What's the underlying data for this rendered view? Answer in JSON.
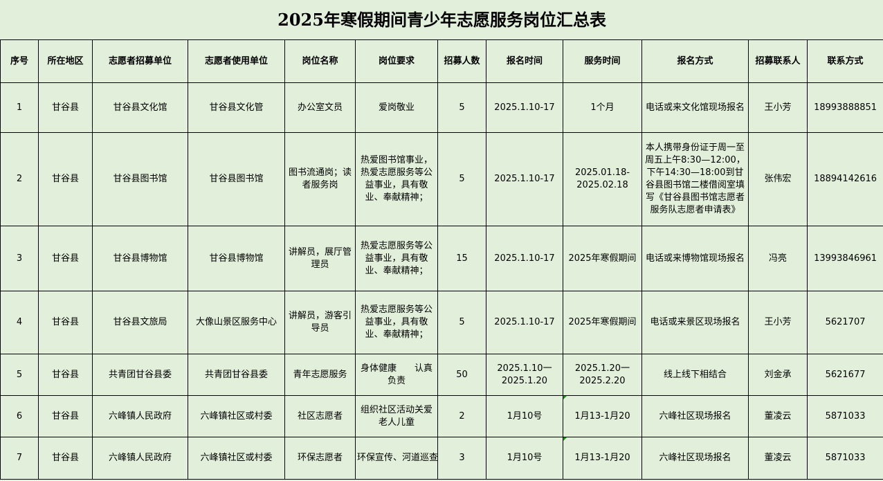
{
  "title": "2025年寒假期间青少年志愿服务岗位汇总表",
  "headers": [
    "序号",
    "所在地区",
    "志愿者招募单位",
    "志愿者使用单位",
    "岗位名称",
    "岗位要求",
    "招募人数",
    "报名时间",
    "服务时间",
    "报名方式",
    "招募联系人",
    "联系方式"
  ],
  "rows": [
    [
      "1",
      "甘谷县",
      "甘谷县文化馆",
      "甘谷县文化管",
      "办公室文员",
      "爱岗敬业",
      "5",
      "2025.1.10-17",
      "1个月",
      "电话或来文化馆现场报名",
      "王小芳",
      "18993888851"
    ],
    [
      "2",
      "甘谷县",
      "甘谷县图书馆",
      "甘谷县图书馆",
      "图书流通岗；读者服务岗",
      "热爱图书馆事业，热爱志愿服务等公益事业，具有敬业、奉献精神；",
      "5",
      "2025.1.10-17",
      "2025.01.18-2025.02.18",
      "本人携带身份证于周一至周五上午8:30—12:00，下午14:30—18:00到甘谷县图书馆二楼借阅室填写《甘谷县图书馆志愿者服务队志愿者申请表》",
      "张伟宏",
      "18894142616"
    ],
    [
      "3",
      "甘谷县",
      "甘谷县博物馆",
      "甘谷县博物馆",
      "讲解员，展厅管理员",
      "热爱志愿服务等公益事业，具有敬业、奉献精神；",
      "15",
      "2025.1.10-17",
      "2025年寒假期间",
      "电话或来博物馆现场报名",
      "冯亮",
      "13993846961"
    ],
    [
      "4",
      "甘谷县",
      "甘谷县文旅局",
      "大像山景区服务中心",
      "讲解员，游客引导员",
      "热爱志愿服务等公益事业，具有敬业、奉献精神；",
      "5",
      "2025.1.10-17",
      "2025年寒假期间",
      "电话或来景区现场报名",
      "王小芳",
      "5621707"
    ],
    [
      "5",
      "甘谷县",
      "共青团甘谷县委",
      "共青团甘谷县委",
      "青年志愿服务",
      "身体健康　　认真负责",
      "50",
      "2025.1.10一2025.1.20",
      "2025.1.20一2025.2.20",
      "线上线下相结合",
      "刘金承",
      "5621677"
    ],
    [
      "6",
      "甘谷县",
      "六峰镇人民政府",
      "六峰镇社区或村委",
      "社区志愿者",
      "组织社区活动关爱老人儿童",
      "2",
      "1月10号",
      "1月13-1月20",
      "六峰社区现场报名",
      "董凌云",
      "5871033"
    ],
    [
      "7",
      "甘谷县",
      "六峰镇人民政府",
      "六峰镇社区或村委",
      "环保志愿者",
      "环保宣传、河道巡查",
      "3",
      "1月10号",
      "1月13-1月20",
      "六峰社区现场报名",
      "董凌云",
      "5871033"
    ]
  ]
}
